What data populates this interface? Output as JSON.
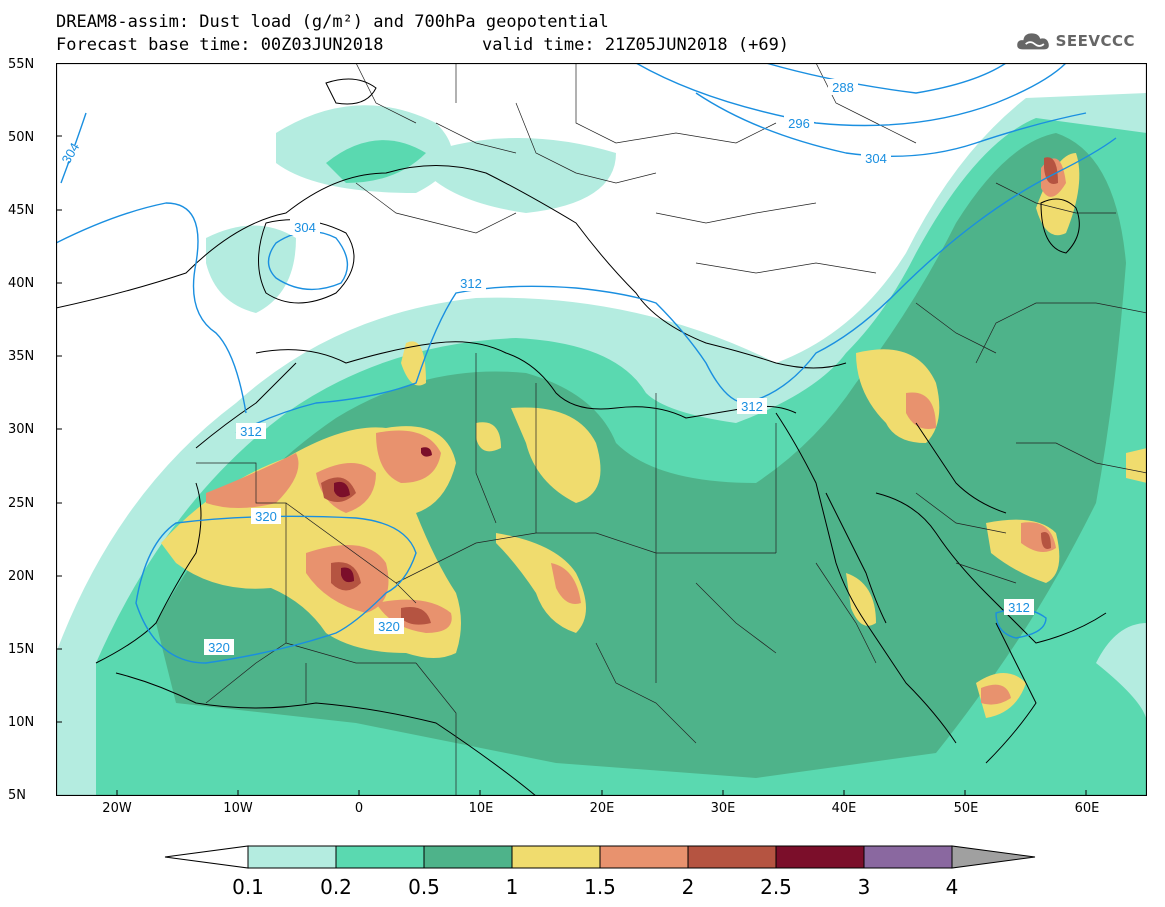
{
  "title": {
    "line1": "DREAM8-assim: Dust load (g/m²) and 700hPa geopotential",
    "line2": "Forecast base time: 00Z03JUN2018",
    "valid": "valid time: 21Z05JUN2018 (+69)"
  },
  "logo": {
    "text": "SEEVCCC",
    "icon": "cloud-icon"
  },
  "axes": {
    "lat_labels": [
      "55N",
      "50N",
      "45N",
      "40N",
      "35N",
      "30N",
      "25N",
      "20N",
      "15N",
      "10N",
      "5N"
    ],
    "lon_labels": [
      "20W",
      "10W",
      "0",
      "10E",
      "20E",
      "30E",
      "40E",
      "50E",
      "60E"
    ],
    "lon_range": [
      -25,
      65
    ],
    "lat_range": [
      5,
      55
    ]
  },
  "legend": {
    "colors": [
      "#b4ece0",
      "#5ad9b0",
      "#4eb38a",
      "#f0dc6e",
      "#e8926e",
      "#b55441",
      "#7b0e2a",
      "#8a68a0"
    ],
    "left_arrow_color": "#ffffff",
    "right_arrow_color": "#a0a0a0",
    "labels": [
      "0.1",
      "0.2",
      "0.5",
      "1",
      "1.5",
      "2",
      "2.5",
      "3",
      "4"
    ]
  },
  "contours": {
    "color": "#1a8fe0",
    "labels": [
      "288",
      "296",
      "304",
      "304",
      "304",
      "312",
      "312",
      "312",
      "312",
      "320",
      "320",
      "320"
    ]
  }
}
